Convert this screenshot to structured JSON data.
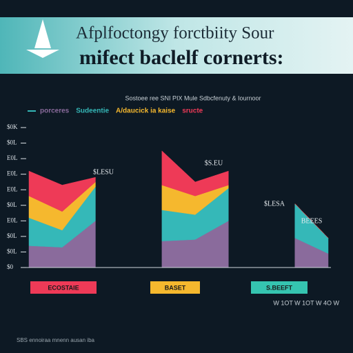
{
  "chart_data": {
    "type": "stacked-area",
    "title": [
      "Afplfoctongy forctbiity Sour",
      "mifect baclelf cornerts:"
    ],
    "subtitle": "Sostoee ree SNI PIX Mule Sdbcfenuty & Iournoor",
    "categories": [
      null,
      null,
      null,
      null,
      null,
      null,
      null,
      null,
      null,
      null
    ],
    "series": [
      {
        "name": "porceres",
        "color": "#8a6b9c",
        "values": [
          14,
          13,
          30,
          null,
          17,
          18,
          30,
          null,
          19,
          9
        ]
      },
      {
        "name": "Sudeentie",
        "color": "#35b8b8",
        "values": [
          18,
          11,
          22,
          null,
          20,
          16,
          21,
          null,
          22,
          10
        ]
      },
      {
        "name": "A/daucick ia kaise",
        "color": "#f5b82e",
        "values": [
          14,
          12,
          3,
          null,
          16,
          12,
          2,
          null,
          0,
          0
        ]
      },
      {
        "name": "sructe",
        "color": "#ee3a57",
        "values": [
          16,
          17,
          3,
          null,
          22,
          9,
          9,
          null,
          0,
          0
        ]
      }
    ],
    "ylim": [
      0,
      90
    ],
    "yticks": [
      {
        "value": 0,
        "label": "$0"
      },
      {
        "value": 10,
        "label": "$0L"
      },
      {
        "value": 20,
        "label": "$0L"
      },
      {
        "value": 30,
        "label": "E0L"
      },
      {
        "value": 40,
        "label": "$0L"
      },
      {
        "value": 50,
        "label": "E0L"
      },
      {
        "value": 60,
        "label": "E0L"
      },
      {
        "value": 70,
        "label": "E0L"
      },
      {
        "value": 80,
        "label": "$0L"
      },
      {
        "value": 90,
        "label": "$0K"
      }
    ],
    "annotations": [
      "$LESU",
      "$S.EU",
      "$LESA",
      "BEEES"
    ],
    "groups": [
      {
        "label": "ECOSTAIE",
        "color": "#ee3a57"
      },
      {
        "label": "BASET",
        "color": "#f5b82e"
      },
      {
        "label": "S.BEEFT",
        "color": "#35c4b0"
      }
    ],
    "axis_note": "W 1OT W 1OT W 4O W",
    "footer": "SBS ennoiraa mnenn ausan iba"
  }
}
